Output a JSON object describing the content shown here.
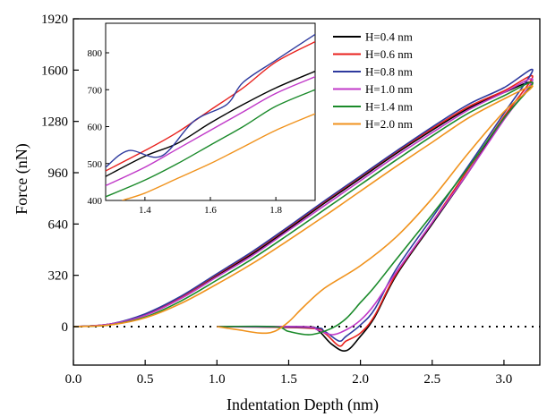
{
  "chart_data": {
    "type": "line",
    "xlabel": "Indentation Depth  (nm)",
    "ylabel": "Force  (nN)",
    "xlim": [
      0.0,
      3.25
    ],
    "ylim": [
      -240,
      1920
    ],
    "xticks": [
      "0.0",
      "0.5",
      "1.0",
      "1.5",
      "2.0",
      "2.5",
      "3.0"
    ],
    "yticks": [
      "0",
      "320",
      "640",
      "960",
      "1280",
      "1600",
      "1920"
    ],
    "zero_line": "dotted",
    "legend_position": "top-right",
    "series": [
      {
        "name": "H=0.4 nm",
        "color": "#000000",
        "loading": [
          [
            0,
            0
          ],
          [
            0.25,
            15
          ],
          [
            0.5,
            75
          ],
          [
            0.75,
            185
          ],
          [
            1.0,
            320
          ],
          [
            1.25,
            455
          ],
          [
            1.5,
            610
          ],
          [
            1.75,
            770
          ],
          [
            2.0,
            925
          ],
          [
            2.25,
            1080
          ],
          [
            2.5,
            1225
          ],
          [
            2.75,
            1360
          ],
          [
            3.0,
            1460
          ],
          [
            3.2,
            1520
          ]
        ],
        "unloading": [
          [
            3.2,
            1520
          ],
          [
            3.0,
            1300
          ],
          [
            2.75,
            960
          ],
          [
            2.5,
            640
          ],
          [
            2.25,
            320
          ],
          [
            2.1,
            60
          ],
          [
            2.0,
            -60
          ],
          [
            1.9,
            -150
          ],
          [
            1.8,
            -110
          ],
          [
            1.7,
            -20
          ],
          [
            1.6,
            0
          ],
          [
            1.0,
            0
          ]
        ]
      },
      {
        "name": "H=0.6 nm",
        "color": "#e8201c",
        "loading": [
          [
            0,
            0
          ],
          [
            0.25,
            15
          ],
          [
            0.5,
            75
          ],
          [
            0.75,
            185
          ],
          [
            1.0,
            325
          ],
          [
            1.25,
            465
          ],
          [
            1.5,
            620
          ],
          [
            1.75,
            780
          ],
          [
            2.0,
            935
          ],
          [
            2.25,
            1090
          ],
          [
            2.5,
            1235
          ],
          [
            2.75,
            1370
          ],
          [
            3.0,
            1470
          ],
          [
            3.2,
            1560
          ]
        ],
        "unloading": [
          [
            3.2,
            1560
          ],
          [
            3.0,
            1310
          ],
          [
            2.75,
            980
          ],
          [
            2.5,
            650
          ],
          [
            2.25,
            330
          ],
          [
            2.1,
            70
          ],
          [
            2.0,
            -40
          ],
          [
            1.9,
            -90
          ],
          [
            1.85,
            -120
          ],
          [
            1.75,
            -40
          ],
          [
            1.65,
            -10
          ],
          [
            1.0,
            0
          ]
        ]
      },
      {
        "name": "H=0.8 nm",
        "color": "#2e3a9e",
        "loading": [
          [
            0,
            0
          ],
          [
            0.25,
            15
          ],
          [
            0.5,
            80
          ],
          [
            0.75,
            190
          ],
          [
            1.0,
            330
          ],
          [
            1.25,
            470
          ],
          [
            1.5,
            625
          ],
          [
            1.75,
            785
          ],
          [
            2.0,
            940
          ],
          [
            2.25,
            1095
          ],
          [
            2.5,
            1245
          ],
          [
            2.75,
            1385
          ],
          [
            3.0,
            1490
          ],
          [
            3.2,
            1600
          ]
        ],
        "unloading": [
          [
            3.2,
            1600
          ],
          [
            3.0,
            1330
          ],
          [
            2.75,
            1000
          ],
          [
            2.5,
            680
          ],
          [
            2.25,
            360
          ],
          [
            2.1,
            110
          ],
          [
            2.0,
            10
          ],
          [
            1.9,
            -60
          ],
          [
            1.85,
            -90
          ],
          [
            1.75,
            -30
          ],
          [
            1.65,
            -5
          ],
          [
            1.0,
            0
          ]
        ]
      },
      {
        "name": "H=1.0 nm",
        "color": "#c038c8",
        "loading": [
          [
            0,
            0
          ],
          [
            0.25,
            15
          ],
          [
            0.5,
            70
          ],
          [
            0.75,
            175
          ],
          [
            1.0,
            310
          ],
          [
            1.25,
            445
          ],
          [
            1.5,
            600
          ],
          [
            1.75,
            755
          ],
          [
            2.0,
            910
          ],
          [
            2.25,
            1065
          ],
          [
            2.5,
            1210
          ],
          [
            2.75,
            1350
          ],
          [
            3.0,
            1460
          ],
          [
            3.2,
            1540
          ]
        ],
        "unloading": [
          [
            3.2,
            1540
          ],
          [
            3.0,
            1290
          ],
          [
            2.75,
            960
          ],
          [
            2.5,
            650
          ],
          [
            2.25,
            340
          ],
          [
            2.1,
            140
          ],
          [
            2.0,
            40
          ],
          [
            1.9,
            -20
          ],
          [
            1.8,
            -50
          ],
          [
            1.7,
            -20
          ],
          [
            1.6,
            0
          ],
          [
            1.0,
            0
          ]
        ]
      },
      {
        "name": "H=1.4 nm",
        "color": "#1a8a2a",
        "loading": [
          [
            0,
            0
          ],
          [
            0.25,
            10
          ],
          [
            0.5,
            60
          ],
          [
            0.75,
            160
          ],
          [
            1.0,
            290
          ],
          [
            1.25,
            425
          ],
          [
            1.5,
            575
          ],
          [
            1.75,
            730
          ],
          [
            2.0,
            885
          ],
          [
            2.25,
            1040
          ],
          [
            2.5,
            1190
          ],
          [
            2.75,
            1330
          ],
          [
            3.0,
            1440
          ],
          [
            3.2,
            1520
          ]
        ],
        "unloading": [
          [
            3.2,
            1520
          ],
          [
            3.0,
            1300
          ],
          [
            2.75,
            990
          ],
          [
            2.5,
            700
          ],
          [
            2.25,
            420
          ],
          [
            2.1,
            250
          ],
          [
            2.0,
            150
          ],
          [
            1.9,
            50
          ],
          [
            1.8,
            -10
          ],
          [
            1.65,
            -50
          ],
          [
            1.5,
            -30
          ],
          [
            1.4,
            0
          ],
          [
            1.0,
            0
          ]
        ]
      },
      {
        "name": "H=2.0 nm",
        "color": "#f0921c",
        "loading": [
          [
            0,
            0
          ],
          [
            0.25,
            10
          ],
          [
            0.5,
            55
          ],
          [
            0.75,
            145
          ],
          [
            1.0,
            265
          ],
          [
            1.25,
            395
          ],
          [
            1.5,
            540
          ],
          [
            1.75,
            690
          ],
          [
            2.0,
            845
          ],
          [
            2.25,
            1000
          ],
          [
            2.5,
            1150
          ],
          [
            2.75,
            1300
          ],
          [
            3.0,
            1420
          ],
          [
            3.2,
            1500
          ]
        ],
        "unloading": [
          [
            3.2,
            1500
          ],
          [
            3.0,
            1340
          ],
          [
            2.75,
            1080
          ],
          [
            2.5,
            800
          ],
          [
            2.25,
            560
          ],
          [
            2.0,
            380
          ],
          [
            1.75,
            240
          ],
          [
            1.6,
            120
          ],
          [
            1.5,
            30
          ],
          [
            1.4,
            -30
          ],
          [
            1.3,
            -40
          ],
          [
            1.15,
            -20
          ],
          [
            1.0,
            0
          ]
        ]
      }
    ],
    "inset": {
      "xlim": [
        1.28,
        1.92
      ],
      "ylim": [
        400,
        880
      ],
      "xticks": [
        "1.4",
        "1.6",
        "1.8"
      ],
      "yticks": [
        "400",
        "500",
        "600",
        "700",
        "800"
      ],
      "series": [
        {
          "name": "H=0.4 nm",
          "color": "#000000",
          "points": [
            [
              1.28,
              465
            ],
            [
              1.4,
              520
            ],
            [
              1.5,
              555
            ],
            [
              1.6,
              610
            ],
            [
              1.7,
              660
            ],
            [
              1.8,
              705
            ],
            [
              1.92,
              750
            ]
          ]
        },
        {
          "name": "H=0.6 nm",
          "color": "#e8201c",
          "points": [
            [
              1.28,
              480
            ],
            [
              1.4,
              535
            ],
            [
              1.5,
              585
            ],
            [
              1.6,
              645
            ],
            [
              1.7,
              705
            ],
            [
              1.8,
              775
            ],
            [
              1.92,
              830
            ]
          ]
        },
        {
          "name": "H=0.8 nm",
          "color": "#2e3a9e",
          "points": [
            [
              1.28,
              490
            ],
            [
              1.35,
              535
            ],
            [
              1.45,
              520
            ],
            [
              1.55,
              615
            ],
            [
              1.65,
              660
            ],
            [
              1.7,
              720
            ],
            [
              1.8,
              780
            ],
            [
              1.92,
              850
            ]
          ]
        },
        {
          "name": "H=1.0 nm",
          "color": "#c038c8",
          "points": [
            [
              1.28,
              440
            ],
            [
              1.4,
              490
            ],
            [
              1.5,
              540
            ],
            [
              1.6,
              590
            ],
            [
              1.7,
              640
            ],
            [
              1.8,
              690
            ],
            [
              1.92,
              735
            ]
          ]
        },
        {
          "name": "H=1.4 nm",
          "color": "#1a8a2a",
          "points": [
            [
              1.28,
              410
            ],
            [
              1.4,
              455
            ],
            [
              1.5,
              500
            ],
            [
              1.6,
              550
            ],
            [
              1.7,
              600
            ],
            [
              1.8,
              655
            ],
            [
              1.92,
              700
            ]
          ]
        },
        {
          "name": "H=2.0 nm",
          "color": "#f0921c",
          "points": [
            [
              1.33,
              400
            ],
            [
              1.4,
              420
            ],
            [
              1.5,
              460
            ],
            [
              1.6,
              500
            ],
            [
              1.7,
              545
            ],
            [
              1.8,
              590
            ],
            [
              1.92,
              635
            ]
          ]
        }
      ]
    }
  }
}
